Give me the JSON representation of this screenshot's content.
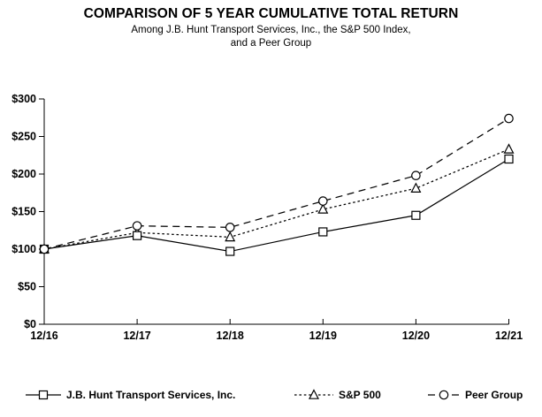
{
  "title": "COMPARISON OF 5 YEAR CUMULATIVE TOTAL RETURN",
  "subtitle_line1": "Among J.B. Hunt Transport Services, Inc., the S&P 500 Index,",
  "subtitle_line2": "and a Peer Group",
  "colors": {
    "foreground": "#000000",
    "background": "#ffffff"
  },
  "chart_data": {
    "type": "line",
    "title": "COMPARISON OF 5 YEAR CUMULATIVE TOTAL RETURN",
    "subtitle": "Among J.B. Hunt Transport Services, Inc., the S&P 500 Index, and a Peer Group",
    "categories": [
      "12/16",
      "12/17",
      "12/18",
      "12/19",
      "12/20",
      "12/21"
    ],
    "series": [
      {
        "name": "J.B. Hunt Transport Services, Inc.",
        "marker": "square",
        "line_style": "solid",
        "values": [
          100,
          118,
          97,
          123,
          145,
          220
        ]
      },
      {
        "name": "S&P 500",
        "marker": "triangle",
        "line_style": "dotted",
        "values": [
          100,
          122,
          116,
          153,
          181,
          233
        ]
      },
      {
        "name": "Peer Group",
        "marker": "circle",
        "line_style": "dashed",
        "values": [
          100,
          131,
          129,
          164,
          198,
          274
        ]
      }
    ],
    "xlabel": "",
    "ylabel": "",
    "ylim": [
      0,
      300
    ],
    "y_tick_interval": 50,
    "y_ticks": [
      "$0",
      "$50",
      "$100",
      "$150",
      "$200",
      "$250",
      "$300"
    ],
    "grid": false,
    "legend_position": "bottom"
  }
}
